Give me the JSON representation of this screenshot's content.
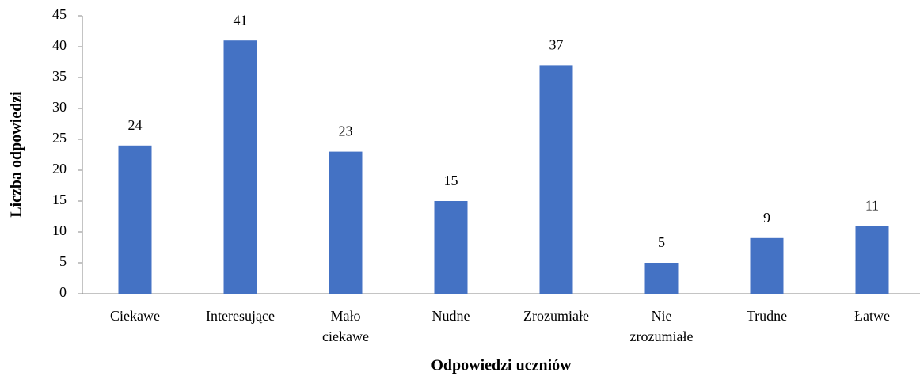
{
  "chart_data": {
    "type": "bar",
    "x_label": "Odpowiedzi uczniów",
    "y_label": "Liczba odpowiedzi",
    "categories": [
      "Ciekawe",
      "Interesujące",
      "Mało ciekawe",
      "Nudne",
      "Zrozumiałe",
      "Nie zrozumiałe",
      "Trudne",
      "Łatwe"
    ],
    "values": [
      24,
      41,
      23,
      15,
      37,
      5,
      9,
      11
    ],
    "color": "#4472c4",
    "ylim": [
      0,
      45
    ],
    "yticks": [
      0,
      5,
      10,
      15,
      20,
      25,
      30,
      35,
      40,
      45
    ],
    "grid": false
  }
}
